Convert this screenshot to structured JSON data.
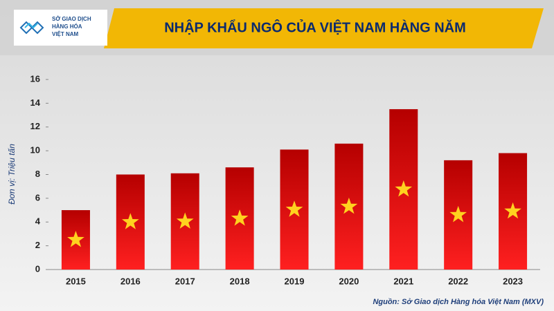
{
  "logo_text": [
    "SỞ GIAO DỊCH",
    "HÀNG HÓA",
    "VIỆT NAM"
  ],
  "chart_data": {
    "type": "bar",
    "title": "NHẬP KHẨU NGÔ CỦA VIỆT NAM HÀNG NĂM",
    "y_label": "Đơn vị: Triệu tấn",
    "source": "Nguồn: Sở Giao dịch Hàng hóa Việt Nam (MXV)",
    "categories": [
      "2015",
      "2016",
      "2017",
      "2018",
      "2019",
      "2020",
      "2021",
      "2022",
      "2023"
    ],
    "values": [
      5.0,
      8.0,
      8.1,
      8.6,
      10.1,
      10.6,
      13.5,
      9.2,
      9.8
    ],
    "color": "#b50000",
    "ylim": [
      0,
      16
    ],
    "yticks": [
      0,
      2,
      4,
      6,
      8,
      10,
      12,
      14,
      16
    ],
    "grid": false
  }
}
